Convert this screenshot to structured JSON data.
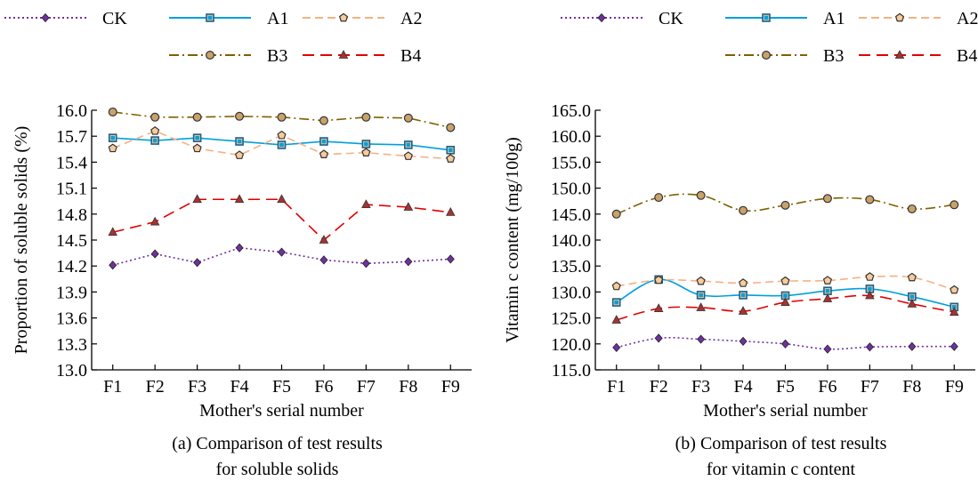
{
  "series_styles": [
    {
      "name": "CK",
      "color": "#7030a0",
      "marker": "diamond",
      "dash": "dot"
    },
    {
      "name": "A1",
      "color": "#00a0dc",
      "marker": "square",
      "dash": "solid"
    },
    {
      "name": "A2",
      "color": "#f4b183",
      "marker": "pentagon",
      "dash": "dash"
    },
    {
      "name": "B3",
      "color": "#7f6000",
      "marker": "circle",
      "dash": "dashdot"
    },
    {
      "name": "B4",
      "color": "#e00000",
      "marker": "triangle",
      "dash": "longdash"
    }
  ],
  "marker_fill": "#f8cb9c",
  "chart_data": [
    {
      "type": "line",
      "categories": [
        "F1",
        "F2",
        "F3",
        "F4",
        "F5",
        "F6",
        "F7",
        "F8",
        "F9"
      ],
      "xlabel": "Mother's serial number",
      "ylabel": "Proportion of soluble solids (%)",
      "ylim": [
        13.0,
        16.0
      ],
      "yticks": [
        "13.0",
        "13.3",
        "13.6",
        "13.9",
        "14.2",
        "14.5",
        "14.8",
        "15.1",
        "15.4",
        "15.7",
        "16.0"
      ],
      "caption_lines": [
        "(a) Comparison of test results",
        "for soluble solids"
      ],
      "legend": "top",
      "series": [
        {
          "name": "CK",
          "values": [
            14.21,
            14.34,
            14.24,
            14.41,
            14.36,
            14.27,
            14.23,
            14.25,
            14.28
          ]
        },
        {
          "name": "A1",
          "values": [
            15.68,
            15.65,
            15.68,
            15.64,
            15.6,
            15.64,
            15.61,
            15.6,
            15.54
          ]
        },
        {
          "name": "A2",
          "values": [
            15.56,
            15.76,
            15.56,
            15.48,
            15.71,
            15.49,
            15.51,
            15.47,
            15.44
          ]
        },
        {
          "name": "B3",
          "values": [
            15.98,
            15.92,
            15.92,
            15.93,
            15.92,
            15.88,
            15.92,
            15.91,
            15.8
          ]
        },
        {
          "name": "B4",
          "values": [
            14.59,
            14.71,
            14.97,
            14.97,
            14.97,
            14.5,
            14.91,
            14.88,
            14.82
          ]
        }
      ]
    },
    {
      "type": "line",
      "categories": [
        "F1",
        "F2",
        "F3",
        "F4",
        "F5",
        "F6",
        "F7",
        "F8",
        "F9"
      ],
      "xlabel": "Mother's serial number",
      "ylabel": "Vitamin c content (mg/100g)",
      "ylim": [
        115.0,
        165.0
      ],
      "yticks": [
        "115.0",
        "120.0",
        "125.0",
        "130.0",
        "135.0",
        "140.0",
        "145.0",
        "150.0",
        "155.0",
        "160.0",
        "165.0"
      ],
      "caption_lines": [
        "(b) Comparison of test results",
        "for vitamin c content"
      ],
      "legend": "top",
      "series": [
        {
          "name": "CK",
          "values": [
            119.3,
            121.1,
            120.9,
            120.5,
            120.0,
            119.0,
            119.4,
            119.5,
            119.5
          ]
        },
        {
          "name": "A1",
          "values": [
            128.0,
            132.4,
            129.4,
            129.4,
            129.3,
            130.2,
            130.6,
            129.1,
            127.1
          ]
        },
        {
          "name": "A2",
          "values": [
            131.1,
            132.3,
            132.1,
            131.7,
            132.1,
            132.2,
            132.9,
            132.8,
            130.4
          ]
        },
        {
          "name": "B3",
          "values": [
            145.0,
            148.2,
            148.6,
            145.7,
            146.7,
            148.0,
            147.8,
            146.0,
            146.8
          ]
        },
        {
          "name": "B4",
          "values": [
            124.6,
            126.8,
            127.0,
            126.3,
            128.0,
            128.7,
            129.3,
            127.7,
            126.1
          ]
        }
      ]
    }
  ]
}
